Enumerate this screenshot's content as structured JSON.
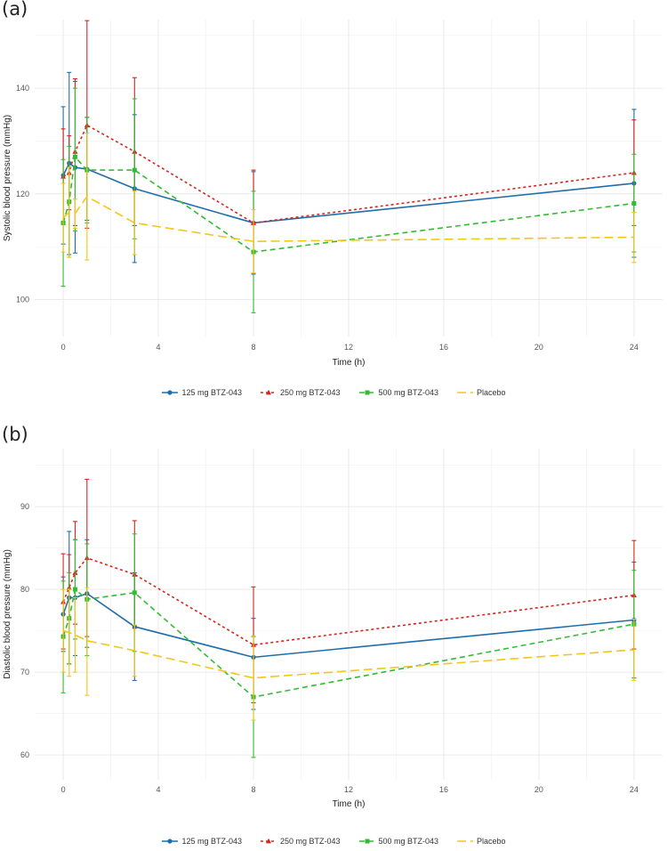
{
  "chart_data": [
    {
      "panel": "(a)",
      "type": "line",
      "title": "",
      "xlabel": "Time (h)",
      "ylabel": "Systolic blood pressure (mmHg)",
      "xlim": [
        -1.2,
        25.2
      ],
      "ylim": [
        93,
        153
      ],
      "xticks": [
        0,
        4,
        8,
        12,
        16,
        20,
        24
      ],
      "yticks": [
        100,
        120,
        140
      ],
      "grid": true,
      "legend_position": "bottom",
      "series": [
        {
          "name": "125 mg BTZ-043",
          "color": "#1f6ea9",
          "marker": "circle",
          "dash": "",
          "x": [
            0,
            0.25,
            0.5,
            1,
            3,
            8,
            24
          ],
          "y": [
            123.5,
            125.8,
            125.0,
            124.7,
            121.0,
            114.5,
            122.0
          ],
          "lower": [
            110.5,
            108.5,
            108.8,
            115.0,
            107.0,
            104.8,
            108.0
          ],
          "upper": [
            136.5,
            143.0,
            141.3,
            134.5,
            135.0,
            124.2,
            136.0
          ]
        },
        {
          "name": "250 mg BTZ-043",
          "color": "#d7261e",
          "marker": "triangle",
          "dash": "3,3",
          "x": [
            0,
            0.25,
            0.5,
            1,
            3,
            8,
            24
          ],
          "y": [
            123.3,
            124.0,
            128.0,
            133.0,
            128.0,
            114.5,
            124.0
          ],
          "lower": [
            114.5,
            117.0,
            114.0,
            113.5,
            114.0,
            105.0,
            114.0
          ],
          "upper": [
            132.3,
            131.0,
            141.8,
            152.8,
            142.0,
            124.5,
            134.0
          ]
        },
        {
          "name": "500 mg BTZ-043",
          "color": "#33bb33",
          "marker": "square",
          "dash": "6,4",
          "x": [
            0,
            0.25,
            0.5,
            1,
            3,
            8,
            24
          ],
          "y": [
            114.5,
            118.5,
            127.0,
            124.5,
            124.5,
            109.0,
            118.2
          ],
          "lower": [
            102.5,
            108.0,
            113.0,
            114.5,
            111.5,
            97.5,
            109.0
          ],
          "upper": [
            126.5,
            129.0,
            140.0,
            134.5,
            138.0,
            120.5,
            127.5
          ]
        },
        {
          "name": "Placebo",
          "color": "#f2c718",
          "marker": "none",
          "dash": "10,5",
          "x": [
            0,
            0.25,
            0.5,
            1,
            3,
            8,
            24
          ],
          "y": [
            115.5,
            116.5,
            116.3,
            119.5,
            114.5,
            111.0,
            111.8
          ],
          "lower": [
            109.0,
            108.0,
            113.5,
            107.5,
            108.5,
            105.0,
            107.0
          ],
          "upper": [
            122.0,
            125.0,
            119.0,
            131.5,
            120.5,
            117.0,
            116.5
          ]
        }
      ]
    },
    {
      "panel": "(b)",
      "type": "line",
      "title": "",
      "xlabel": "Time (h)",
      "ylabel": "Diastolic blood pressure (mmHg)",
      "xlim": [
        -1.2,
        25.2
      ],
      "ylim": [
        57,
        97
      ],
      "xticks": [
        0,
        4,
        8,
        12,
        16,
        20,
        24
      ],
      "yticks": [
        60,
        70,
        80,
        90
      ],
      "grid": true,
      "legend_position": "bottom",
      "series": [
        {
          "name": "125 mg BTZ-043",
          "color": "#1f6ea9",
          "marker": "circle",
          "dash": "",
          "x": [
            0,
            0.25,
            0.5,
            1,
            3,
            8,
            24
          ],
          "y": [
            77.0,
            79.0,
            79.0,
            79.5,
            75.5,
            71.8,
            76.3
          ],
          "lower": [
            72.5,
            71.0,
            72.0,
            73.0,
            69.0,
            65.5,
            69.3
          ],
          "upper": [
            81.5,
            87.0,
            86.0,
            86.0,
            82.0,
            76.5,
            83.3
          ]
        },
        {
          "name": "250 mg BTZ-043",
          "color": "#d7261e",
          "marker": "triangle",
          "dash": "3,3",
          "x": [
            0,
            0.25,
            0.5,
            1,
            3,
            8,
            24
          ],
          "y": [
            78.5,
            80.2,
            82.0,
            83.8,
            81.8,
            73.3,
            79.3
          ],
          "lower": [
            72.8,
            76.3,
            75.8,
            74.3,
            75.3,
            66.3,
            72.8
          ],
          "upper": [
            84.3,
            84.2,
            88.2,
            93.3,
            88.3,
            80.3,
            85.9
          ]
        },
        {
          "name": "500 mg BTZ-043",
          "color": "#33bb33",
          "marker": "square",
          "dash": "6,4",
          "x": [
            0,
            0.25,
            0.5,
            1,
            3,
            8,
            24
          ],
          "y": [
            74.3,
            76.5,
            80.0,
            78.8,
            79.6,
            67.0,
            75.8
          ],
          "lower": [
            67.5,
            71.0,
            74.0,
            72.0,
            72.5,
            59.7,
            69.3
          ],
          "upper": [
            81.0,
            82.0,
            86.0,
            85.5,
            86.7,
            74.3,
            82.3
          ]
        },
        {
          "name": "Placebo",
          "color": "#f2c718",
          "marker": "none",
          "dash": "10,5",
          "x": [
            0,
            0.25,
            0.5,
            1,
            3,
            8,
            24
          ],
          "y": [
            75.0,
            74.8,
            74.5,
            73.8,
            72.6,
            69.3,
            72.7
          ],
          "lower": [
            70.0,
            69.5,
            70.0,
            67.2,
            69.5,
            64.2,
            69.0
          ],
          "upper": [
            80.0,
            80.0,
            79.0,
            80.2,
            75.7,
            74.4,
            76.4
          ]
        }
      ]
    }
  ]
}
